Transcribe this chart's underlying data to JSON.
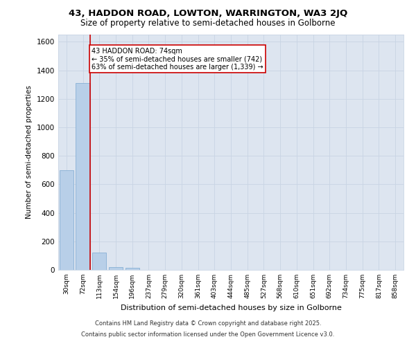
{
  "title": "43, HADDON ROAD, LOWTON, WARRINGTON, WA3 2JQ",
  "subtitle": "Size of property relative to semi-detached houses in Golborne",
  "xlabel": "Distribution of semi-detached houses by size in Golborne",
  "ylabel": "Number of semi-detached properties",
  "categories": [
    "30sqm",
    "72sqm",
    "113sqm",
    "154sqm",
    "196sqm",
    "237sqm",
    "279sqm",
    "320sqm",
    "361sqm",
    "403sqm",
    "444sqm",
    "485sqm",
    "527sqm",
    "568sqm",
    "610sqm",
    "651sqm",
    "692sqm",
    "734sqm",
    "775sqm",
    "817sqm",
    "858sqm"
  ],
  "values": [
    700,
    1310,
    120,
    20,
    15,
    0,
    0,
    0,
    0,
    0,
    0,
    0,
    0,
    0,
    0,
    0,
    0,
    0,
    0,
    0,
    0
  ],
  "bar_color": "#b8cfe8",
  "bar_edge_color": "#7aa8d0",
  "property_line_x": 1.42,
  "property_line_color": "#cc0000",
  "annotation_text": "43 HADDON ROAD: 74sqm\n← 35% of semi-detached houses are smaller (742)\n63% of semi-detached houses are larger (1,339) →",
  "annotation_box_color": "#ffffff",
  "annotation_box_edge": "#cc0000",
  "ylim": [
    0,
    1650
  ],
  "yticks": [
    0,
    200,
    400,
    600,
    800,
    1000,
    1200,
    1400,
    1600
  ],
  "background_color": "#dde5f0",
  "plot_background": "#dde5f0",
  "footer_line1": "Contains HM Land Registry data © Crown copyright and database right 2025.",
  "footer_line2": "Contains public sector information licensed under the Open Government Licence v3.0."
}
